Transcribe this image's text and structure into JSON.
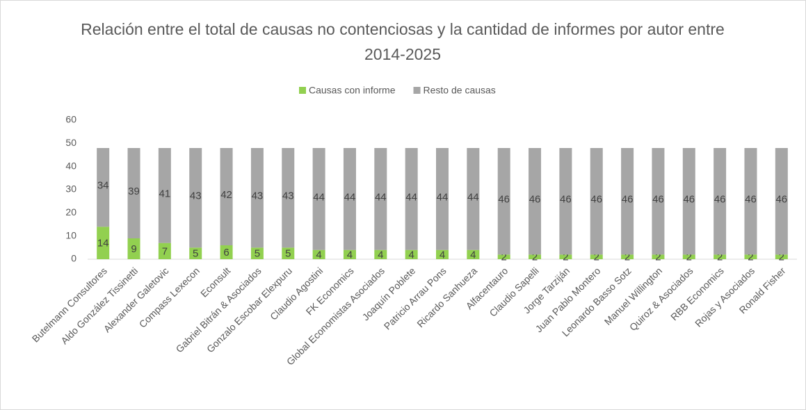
{
  "chart_data": {
    "type": "stacked_bar",
    "title": "Relación entre el total de causas no contenciosas y la cantidad de informes por autor entre 2014-2025",
    "categories": [
      "Butelmann Consultores",
      "Aldo González Tissinetti",
      "Alexander Galetovic",
      "Compass Lexecon",
      "Econsult",
      "Gabriel Bitrán & Asociados",
      "Gonzalo Escobar Elexpuru",
      "Claudio Agostini",
      "FK Economics",
      "Global Economistas Asociados",
      "Joaquín Poblete",
      "Patricio Arrau Pons",
      "Ricardo Sanhueza",
      "Alfacentauro",
      "Claudio Sapelli",
      "Jorge Tarziján",
      "Juan Pablo Montero",
      "Leonardo Basso Sotz",
      "Manuel Willington",
      "Quiroz & Asociados",
      "RBB Economics",
      "Rojas y Asociados",
      "Ronald Fisher"
    ],
    "series": [
      {
        "name": "Causas con informe",
        "color": "#92d050",
        "values": [
          14,
          9,
          7,
          5,
          6,
          5,
          5,
          4,
          4,
          4,
          4,
          4,
          4,
          2,
          2,
          2,
          2,
          2,
          2,
          2,
          2,
          2,
          2
        ]
      },
      {
        "name": "Resto de causas",
        "color": "#a6a6a6",
        "values": [
          34,
          39,
          41,
          43,
          42,
          43,
          43,
          44,
          44,
          44,
          44,
          44,
          44,
          46,
          46,
          46,
          46,
          46,
          46,
          46,
          46,
          46,
          46
        ]
      }
    ],
    "ylim": [
      0,
      60
    ],
    "yticks": [
      0,
      10,
      20,
      30,
      40,
      50,
      60
    ],
    "grid": false,
    "legend": "top"
  }
}
